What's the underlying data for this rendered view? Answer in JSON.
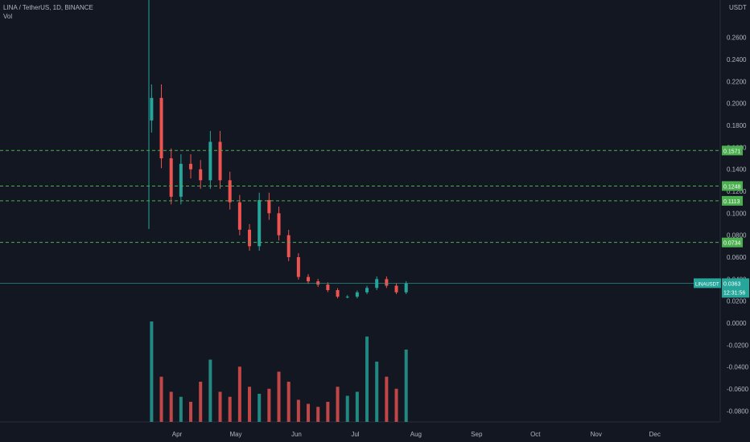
{
  "header": {
    "symbol_line": "LINA / TetherUS, 1D, BINANCE",
    "vol_label": "Vol"
  },
  "currency_label": "USDT",
  "last_price": {
    "symbol": "LINAUSDT",
    "price": "0.0363",
    "countdown": "12:31:56"
  },
  "colors": {
    "background": "#131722",
    "up": "#26a69a",
    "down": "#ef5350",
    "level": "#4caf50",
    "last": "#26a69a",
    "text": "#b2b5be"
  },
  "chart_data": {
    "type": "candlestick",
    "x_axis": {
      "range": [
        "2021-03-14",
        "2021-12-31"
      ],
      "ticks": [
        "Apr",
        "May",
        "Jun",
        "Jul",
        "Aug",
        "Sep",
        "Oct",
        "Nov",
        "Dec"
      ]
    },
    "y_axis": {
      "ticks": [
        "0.2600",
        "0.2400",
        "0.2200",
        "0.2000",
        "0.1800",
        "0.1600",
        "0.1400",
        "0.1200",
        "0.1000",
        "0.0800",
        "0.0600",
        "0.0400",
        "0.0200",
        "0.0000",
        "-0.0200",
        "-0.0400",
        "-0.0600",
        "-0.0800"
      ]
    },
    "horizontal_levels": [
      {
        "value": 0.1571,
        "label": "0.1571"
      },
      {
        "value": 0.1248,
        "label": "0.1248"
      },
      {
        "value": 0.1113,
        "label": "0.1113"
      },
      {
        "value": 0.0734,
        "label": "0.0734"
      }
    ],
    "last_value": 0.0363,
    "price_series": {
      "dates": [
        "2021-03-19",
        "2021-03-24",
        "2021-03-29",
        "2021-04-03",
        "2021-04-08",
        "2021-04-13",
        "2021-04-18",
        "2021-04-23",
        "2021-04-28",
        "2021-05-03",
        "2021-05-08",
        "2021-05-13",
        "2021-05-18",
        "2021-05-23",
        "2021-05-28",
        "2021-06-02",
        "2021-06-07",
        "2021-06-12",
        "2021-06-17",
        "2021-06-22",
        "2021-06-27",
        "2021-07-02",
        "2021-07-07",
        "2021-07-12",
        "2021-07-17",
        "2021-07-22",
        "2021-07-27"
      ],
      "close": [
        0.205,
        0.15,
        0.115,
        0.145,
        0.14,
        0.13,
        0.165,
        0.13,
        0.11,
        0.085,
        0.07,
        0.112,
        0.1,
        0.08,
        0.06,
        0.042,
        0.038,
        0.035,
        0.03,
        0.024,
        0.024,
        0.028,
        0.032,
        0.04,
        0.034,
        0.028,
        0.036
      ]
    },
    "volume_relative": [
      1.0,
      0.45,
      0.3,
      0.25,
      0.2,
      0.4,
      0.62,
      0.3,
      0.25,
      0.55,
      0.35,
      0.28,
      0.33,
      0.5,
      0.4,
      0.22,
      0.18,
      0.15,
      0.2,
      0.35,
      0.26,
      0.3,
      0.85,
      0.6,
      0.45,
      0.33,
      0.72
    ]
  }
}
